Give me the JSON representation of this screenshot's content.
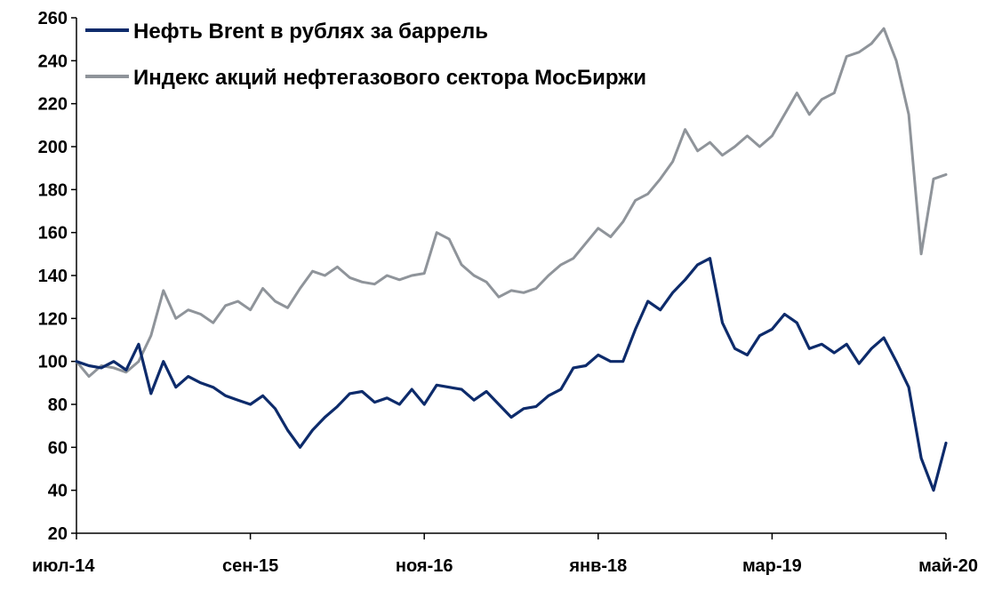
{
  "chart_data": {
    "type": "line",
    "title": "",
    "xlabel": "",
    "ylabel": "",
    "ylim": [
      20,
      260
    ],
    "y_ticks": [
      20,
      40,
      60,
      80,
      100,
      120,
      140,
      160,
      180,
      200,
      220,
      240,
      260
    ],
    "x_range": [
      "2014-07",
      "2020-05"
    ],
    "x_tick_labels": [
      {
        "date": "2014-07",
        "label": "июл-14"
      },
      {
        "date": "2015-09",
        "label": "сен-15"
      },
      {
        "date": "2016-11",
        "label": "ноя-16"
      },
      {
        "date": "2018-01",
        "label": "янв-18"
      },
      {
        "date": "2019-03",
        "label": "мар-19"
      },
      {
        "date": "2020-05",
        "label": "май-20"
      }
    ],
    "grid": false,
    "legend_position": "top-left",
    "series": [
      {
        "name": "Нефть Brent в рублях за баррель",
        "color": "#0d2b6b",
        "points": [
          [
            "2014-07",
            100
          ],
          [
            "2014-08",
            98
          ],
          [
            "2014-09",
            97
          ],
          [
            "2014-10",
            100
          ],
          [
            "2014-11",
            96
          ],
          [
            "2014-12",
            108
          ],
          [
            "2015-01",
            85
          ],
          [
            "2015-02",
            100
          ],
          [
            "2015-03",
            88
          ],
          [
            "2015-04",
            93
          ],
          [
            "2015-05",
            90
          ],
          [
            "2015-06",
            88
          ],
          [
            "2015-07",
            84
          ],
          [
            "2015-08",
            82
          ],
          [
            "2015-09",
            80
          ],
          [
            "2015-10",
            84
          ],
          [
            "2015-11",
            78
          ],
          [
            "2015-12",
            68
          ],
          [
            "2016-01",
            60
          ],
          [
            "2016-02",
            68
          ],
          [
            "2016-03",
            74
          ],
          [
            "2016-04",
            79
          ],
          [
            "2016-05",
            85
          ],
          [
            "2016-06",
            86
          ],
          [
            "2016-07",
            81
          ],
          [
            "2016-08",
            83
          ],
          [
            "2016-09",
            80
          ],
          [
            "2016-10",
            87
          ],
          [
            "2016-11",
            80
          ],
          [
            "2016-12",
            89
          ],
          [
            "2017-01",
            88
          ],
          [
            "2017-02",
            87
          ],
          [
            "2017-03",
            82
          ],
          [
            "2017-04",
            86
          ],
          [
            "2017-05",
            80
          ],
          [
            "2017-06",
            74
          ],
          [
            "2017-07",
            78
          ],
          [
            "2017-08",
            79
          ],
          [
            "2017-09",
            84
          ],
          [
            "2017-10",
            87
          ],
          [
            "2017-11",
            97
          ],
          [
            "2017-12",
            98
          ],
          [
            "2018-01",
            103
          ],
          [
            "2018-02",
            100
          ],
          [
            "2018-03",
            100
          ],
          [
            "2018-04",
            115
          ],
          [
            "2018-05",
            128
          ],
          [
            "2018-06",
            124
          ],
          [
            "2018-07",
            132
          ],
          [
            "2018-08",
            138
          ],
          [
            "2018-09",
            145
          ],
          [
            "2018-10",
            148
          ],
          [
            "2018-11",
            118
          ],
          [
            "2018-12",
            106
          ],
          [
            "2019-01",
            103
          ],
          [
            "2019-02",
            112
          ],
          [
            "2019-03",
            115
          ],
          [
            "2019-04",
            122
          ],
          [
            "2019-05",
            118
          ],
          [
            "2019-06",
            106
          ],
          [
            "2019-07",
            108
          ],
          [
            "2019-08",
            104
          ],
          [
            "2019-09",
            108
          ],
          [
            "2019-10",
            99
          ],
          [
            "2019-11",
            106
          ],
          [
            "2019-12",
            111
          ],
          [
            "2020-01",
            100
          ],
          [
            "2020-02",
            88
          ],
          [
            "2020-03",
            55
          ],
          [
            "2020-04",
            40
          ],
          [
            "2020-05",
            62
          ]
        ]
      },
      {
        "name": "Индекс акций нефтегазового сектора МосБиржи",
        "color": "#8f949a",
        "points": [
          [
            "2014-07",
            100
          ],
          [
            "2014-08",
            93
          ],
          [
            "2014-09",
            98
          ],
          [
            "2014-10",
            97
          ],
          [
            "2014-11",
            95
          ],
          [
            "2014-12",
            100
          ],
          [
            "2015-01",
            112
          ],
          [
            "2015-02",
            133
          ],
          [
            "2015-03",
            120
          ],
          [
            "2015-04",
            124
          ],
          [
            "2015-05",
            122
          ],
          [
            "2015-06",
            118
          ],
          [
            "2015-07",
            126
          ],
          [
            "2015-08",
            128
          ],
          [
            "2015-09",
            124
          ],
          [
            "2015-10",
            134
          ],
          [
            "2015-11",
            128
          ],
          [
            "2015-12",
            125
          ],
          [
            "2016-01",
            134
          ],
          [
            "2016-02",
            142
          ],
          [
            "2016-03",
            140
          ],
          [
            "2016-04",
            144
          ],
          [
            "2016-05",
            139
          ],
          [
            "2016-06",
            137
          ],
          [
            "2016-07",
            136
          ],
          [
            "2016-08",
            140
          ],
          [
            "2016-09",
            138
          ],
          [
            "2016-10",
            140
          ],
          [
            "2016-11",
            141
          ],
          [
            "2016-12",
            160
          ],
          [
            "2017-01",
            157
          ],
          [
            "2017-02",
            145
          ],
          [
            "2017-03",
            140
          ],
          [
            "2017-04",
            137
          ],
          [
            "2017-05",
            130
          ],
          [
            "2017-06",
            133
          ],
          [
            "2017-07",
            132
          ],
          [
            "2017-08",
            134
          ],
          [
            "2017-09",
            140
          ],
          [
            "2017-10",
            145
          ],
          [
            "2017-11",
            148
          ],
          [
            "2017-12",
            155
          ],
          [
            "2018-01",
            162
          ],
          [
            "2018-02",
            158
          ],
          [
            "2018-03",
            165
          ],
          [
            "2018-04",
            175
          ],
          [
            "2018-05",
            178
          ],
          [
            "2018-06",
            185
          ],
          [
            "2018-07",
            193
          ],
          [
            "2018-08",
            208
          ],
          [
            "2018-09",
            198
          ],
          [
            "2018-10",
            202
          ],
          [
            "2018-11",
            196
          ],
          [
            "2018-12",
            200
          ],
          [
            "2019-01",
            205
          ],
          [
            "2019-02",
            200
          ],
          [
            "2019-03",
            205
          ],
          [
            "2019-04",
            215
          ],
          [
            "2019-05",
            225
          ],
          [
            "2019-06",
            215
          ],
          [
            "2019-07",
            222
          ],
          [
            "2019-08",
            225
          ],
          [
            "2019-09",
            242
          ],
          [
            "2019-10",
            244
          ],
          [
            "2019-11",
            248
          ],
          [
            "2019-12",
            255
          ],
          [
            "2020-01",
            240
          ],
          [
            "2020-02",
            215
          ],
          [
            "2020-03",
            150
          ],
          [
            "2020-04",
            185
          ],
          [
            "2020-05",
            187
          ]
        ]
      }
    ]
  }
}
